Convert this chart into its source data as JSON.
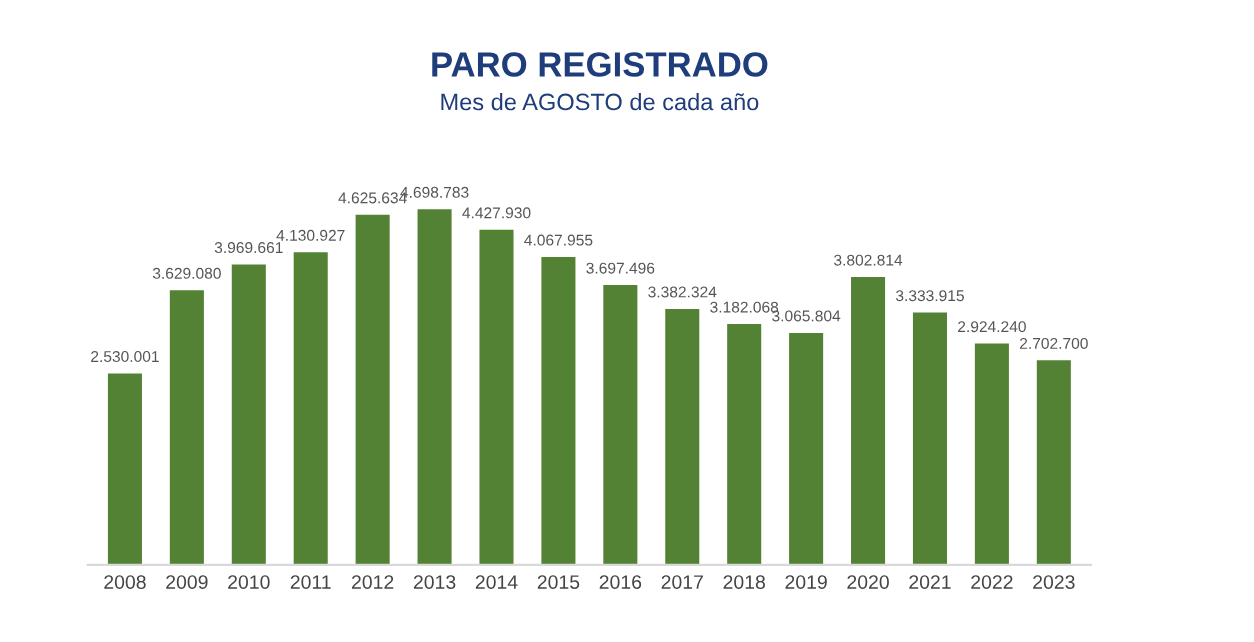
{
  "chart_data": {
    "type": "bar",
    "title": "PARO REGISTRADO",
    "subtitle": "Mes de AGOSTO de cada año",
    "categories": [
      "2008",
      "2009",
      "2010",
      "2011",
      "2012",
      "2013",
      "2014",
      "2015",
      "2016",
      "2017",
      "2018",
      "2019",
      "2020",
      "2021",
      "2022",
      "2023"
    ],
    "values": [
      2530001,
      3629080,
      3969661,
      4130927,
      4625634,
      4698783,
      4427930,
      4067955,
      3697496,
      3382324,
      3182068,
      3065804,
      3802814,
      3333915,
      2924240,
      2702700
    ],
    "value_labels": [
      "2.530.001",
      "3.629.080",
      "3.969.661",
      "4.130.927",
      "4.625.634",
      "4.698.783",
      "4.427.930",
      "4.067.955",
      "3.697.496",
      "3.382.324",
      "3.182.068",
      "3.065.804",
      "3.802.814",
      "3.333.915",
      "2.924.240",
      "2.702.700"
    ],
    "color": "#548235",
    "legend": false,
    "grid": false,
    "tick_labels": "x"
  }
}
